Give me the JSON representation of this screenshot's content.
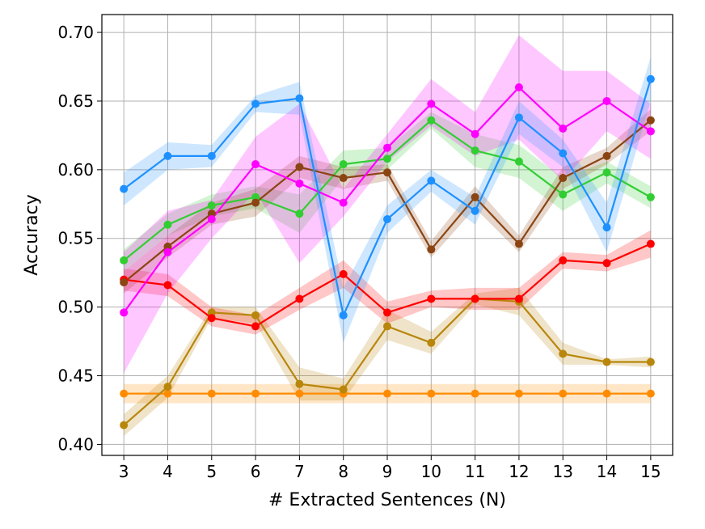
{
  "chart_data": {
    "type": "line",
    "title": "",
    "xlabel": "# Extracted Sentences (N)",
    "ylabel": "Accuracy",
    "xlim": [
      2.5,
      15.5
    ],
    "ylim": [
      0.392,
      0.713
    ],
    "grid": true,
    "legend": "none",
    "x": [
      3,
      4,
      5,
      6,
      7,
      8,
      9,
      10,
      11,
      12,
      13,
      14,
      15
    ],
    "x_ticks": [
      "3",
      "4",
      "5",
      "6",
      "7",
      "8",
      "9",
      "10",
      "11",
      "12",
      "13",
      "14",
      "15"
    ],
    "y_ticks": [
      {
        "value": 0.4,
        "label": "0.40"
      },
      {
        "value": 0.45,
        "label": "0.45"
      },
      {
        "value": 0.5,
        "label": "0.50"
      },
      {
        "value": 0.55,
        "label": "0.55"
      },
      {
        "value": 0.6,
        "label": "0.60"
      },
      {
        "value": 0.65,
        "label": "0.65"
      },
      {
        "value": 0.7,
        "label": "0.70"
      }
    ],
    "series": [
      {
        "name": "orange",
        "color": "#ff8c00",
        "values": [
          0.437,
          0.437,
          0.437,
          0.437,
          0.437,
          0.437,
          0.437,
          0.437,
          0.437,
          0.437,
          0.437,
          0.437,
          0.437
        ],
        "lower": [
          0.43,
          0.43,
          0.43,
          0.43,
          0.43,
          0.43,
          0.43,
          0.43,
          0.43,
          0.43,
          0.43,
          0.43,
          0.43
        ],
        "upper": [
          0.444,
          0.444,
          0.444,
          0.444,
          0.444,
          0.444,
          0.444,
          0.444,
          0.444,
          0.444,
          0.444,
          0.444,
          0.444
        ]
      },
      {
        "name": "gold",
        "color": "#b8860b",
        "values": [
          0.414,
          0.442,
          0.496,
          0.494,
          0.444,
          0.44,
          0.486,
          0.474,
          0.506,
          0.504,
          0.466,
          0.46,
          0.46
        ],
        "lower": [
          0.406,
          0.434,
          0.492,
          0.488,
          0.432,
          0.432,
          0.476,
          0.466,
          0.502,
          0.494,
          0.458,
          0.458,
          0.456
        ],
        "upper": [
          0.422,
          0.45,
          0.5,
          0.5,
          0.456,
          0.448,
          0.498,
          0.482,
          0.51,
          0.514,
          0.474,
          0.462,
          0.464
        ]
      },
      {
        "name": "red",
        "color": "#ff0000",
        "values": [
          0.52,
          0.516,
          0.492,
          0.486,
          0.506,
          0.524,
          0.496,
          0.506,
          0.506,
          0.506,
          0.534,
          0.532,
          0.546
        ],
        "lower": [
          0.512,
          0.508,
          0.486,
          0.48,
          0.498,
          0.514,
          0.488,
          0.5,
          0.498,
          0.498,
          0.528,
          0.526,
          0.536
        ],
        "upper": [
          0.528,
          0.524,
          0.5,
          0.494,
          0.514,
          0.534,
          0.504,
          0.512,
          0.514,
          0.514,
          0.54,
          0.538,
          0.556
        ]
      },
      {
        "name": "green",
        "color": "#32cd32",
        "values": [
          0.534,
          0.56,
          0.574,
          0.58,
          0.568,
          0.604,
          0.608,
          0.636,
          0.614,
          0.606,
          0.582,
          0.598,
          0.58
        ],
        "lower": [
          0.526,
          0.552,
          0.566,
          0.572,
          0.554,
          0.594,
          0.6,
          0.63,
          0.602,
          0.594,
          0.57,
          0.59,
          0.572
        ],
        "upper": [
          0.542,
          0.568,
          0.582,
          0.588,
          0.582,
          0.614,
          0.616,
          0.642,
          0.626,
          0.618,
          0.594,
          0.606,
          0.588
        ]
      },
      {
        "name": "brown",
        "color": "#8b4513",
        "values": [
          0.518,
          0.544,
          0.568,
          0.576,
          0.602,
          0.594,
          0.598,
          0.542,
          0.58,
          0.546,
          0.594,
          0.61,
          0.636
        ],
        "lower": [
          0.51,
          0.536,
          0.56,
          0.566,
          0.594,
          0.586,
          0.592,
          0.536,
          0.572,
          0.54,
          0.586,
          0.604,
          0.628
        ],
        "upper": [
          0.526,
          0.552,
          0.576,
          0.586,
          0.61,
          0.602,
          0.604,
          0.548,
          0.588,
          0.552,
          0.602,
          0.616,
          0.644
        ]
      },
      {
        "name": "magenta",
        "color": "#ff00ff",
        "values": [
          0.496,
          0.54,
          0.564,
          0.604,
          0.59,
          0.576,
          0.616,
          0.648,
          0.626,
          0.66,
          0.63,
          0.65,
          0.628
        ],
        "lower": [
          0.452,
          0.51,
          0.55,
          0.584,
          0.532,
          0.566,
          0.606,
          0.632,
          0.61,
          0.622,
          0.592,
          0.628,
          0.608
        ],
        "upper": [
          0.54,
          0.57,
          0.578,
          0.624,
          0.648,
          0.586,
          0.626,
          0.666,
          0.642,
          0.698,
          0.672,
          0.672,
          0.648
        ]
      },
      {
        "name": "blue",
        "color": "#1e90ff",
        "values": [
          0.586,
          0.61,
          0.61,
          0.648,
          0.652,
          0.494,
          0.564,
          0.592,
          0.57,
          0.638,
          0.612,
          0.558,
          0.666
        ],
        "lower": [
          0.574,
          0.6,
          0.602,
          0.642,
          0.64,
          0.474,
          0.554,
          0.584,
          0.56,
          0.626,
          0.602,
          0.54,
          0.65
        ],
        "upper": [
          0.598,
          0.62,
          0.618,
          0.654,
          0.664,
          0.514,
          0.574,
          0.6,
          0.58,
          0.65,
          0.622,
          0.576,
          0.682
        ]
      }
    ]
  }
}
